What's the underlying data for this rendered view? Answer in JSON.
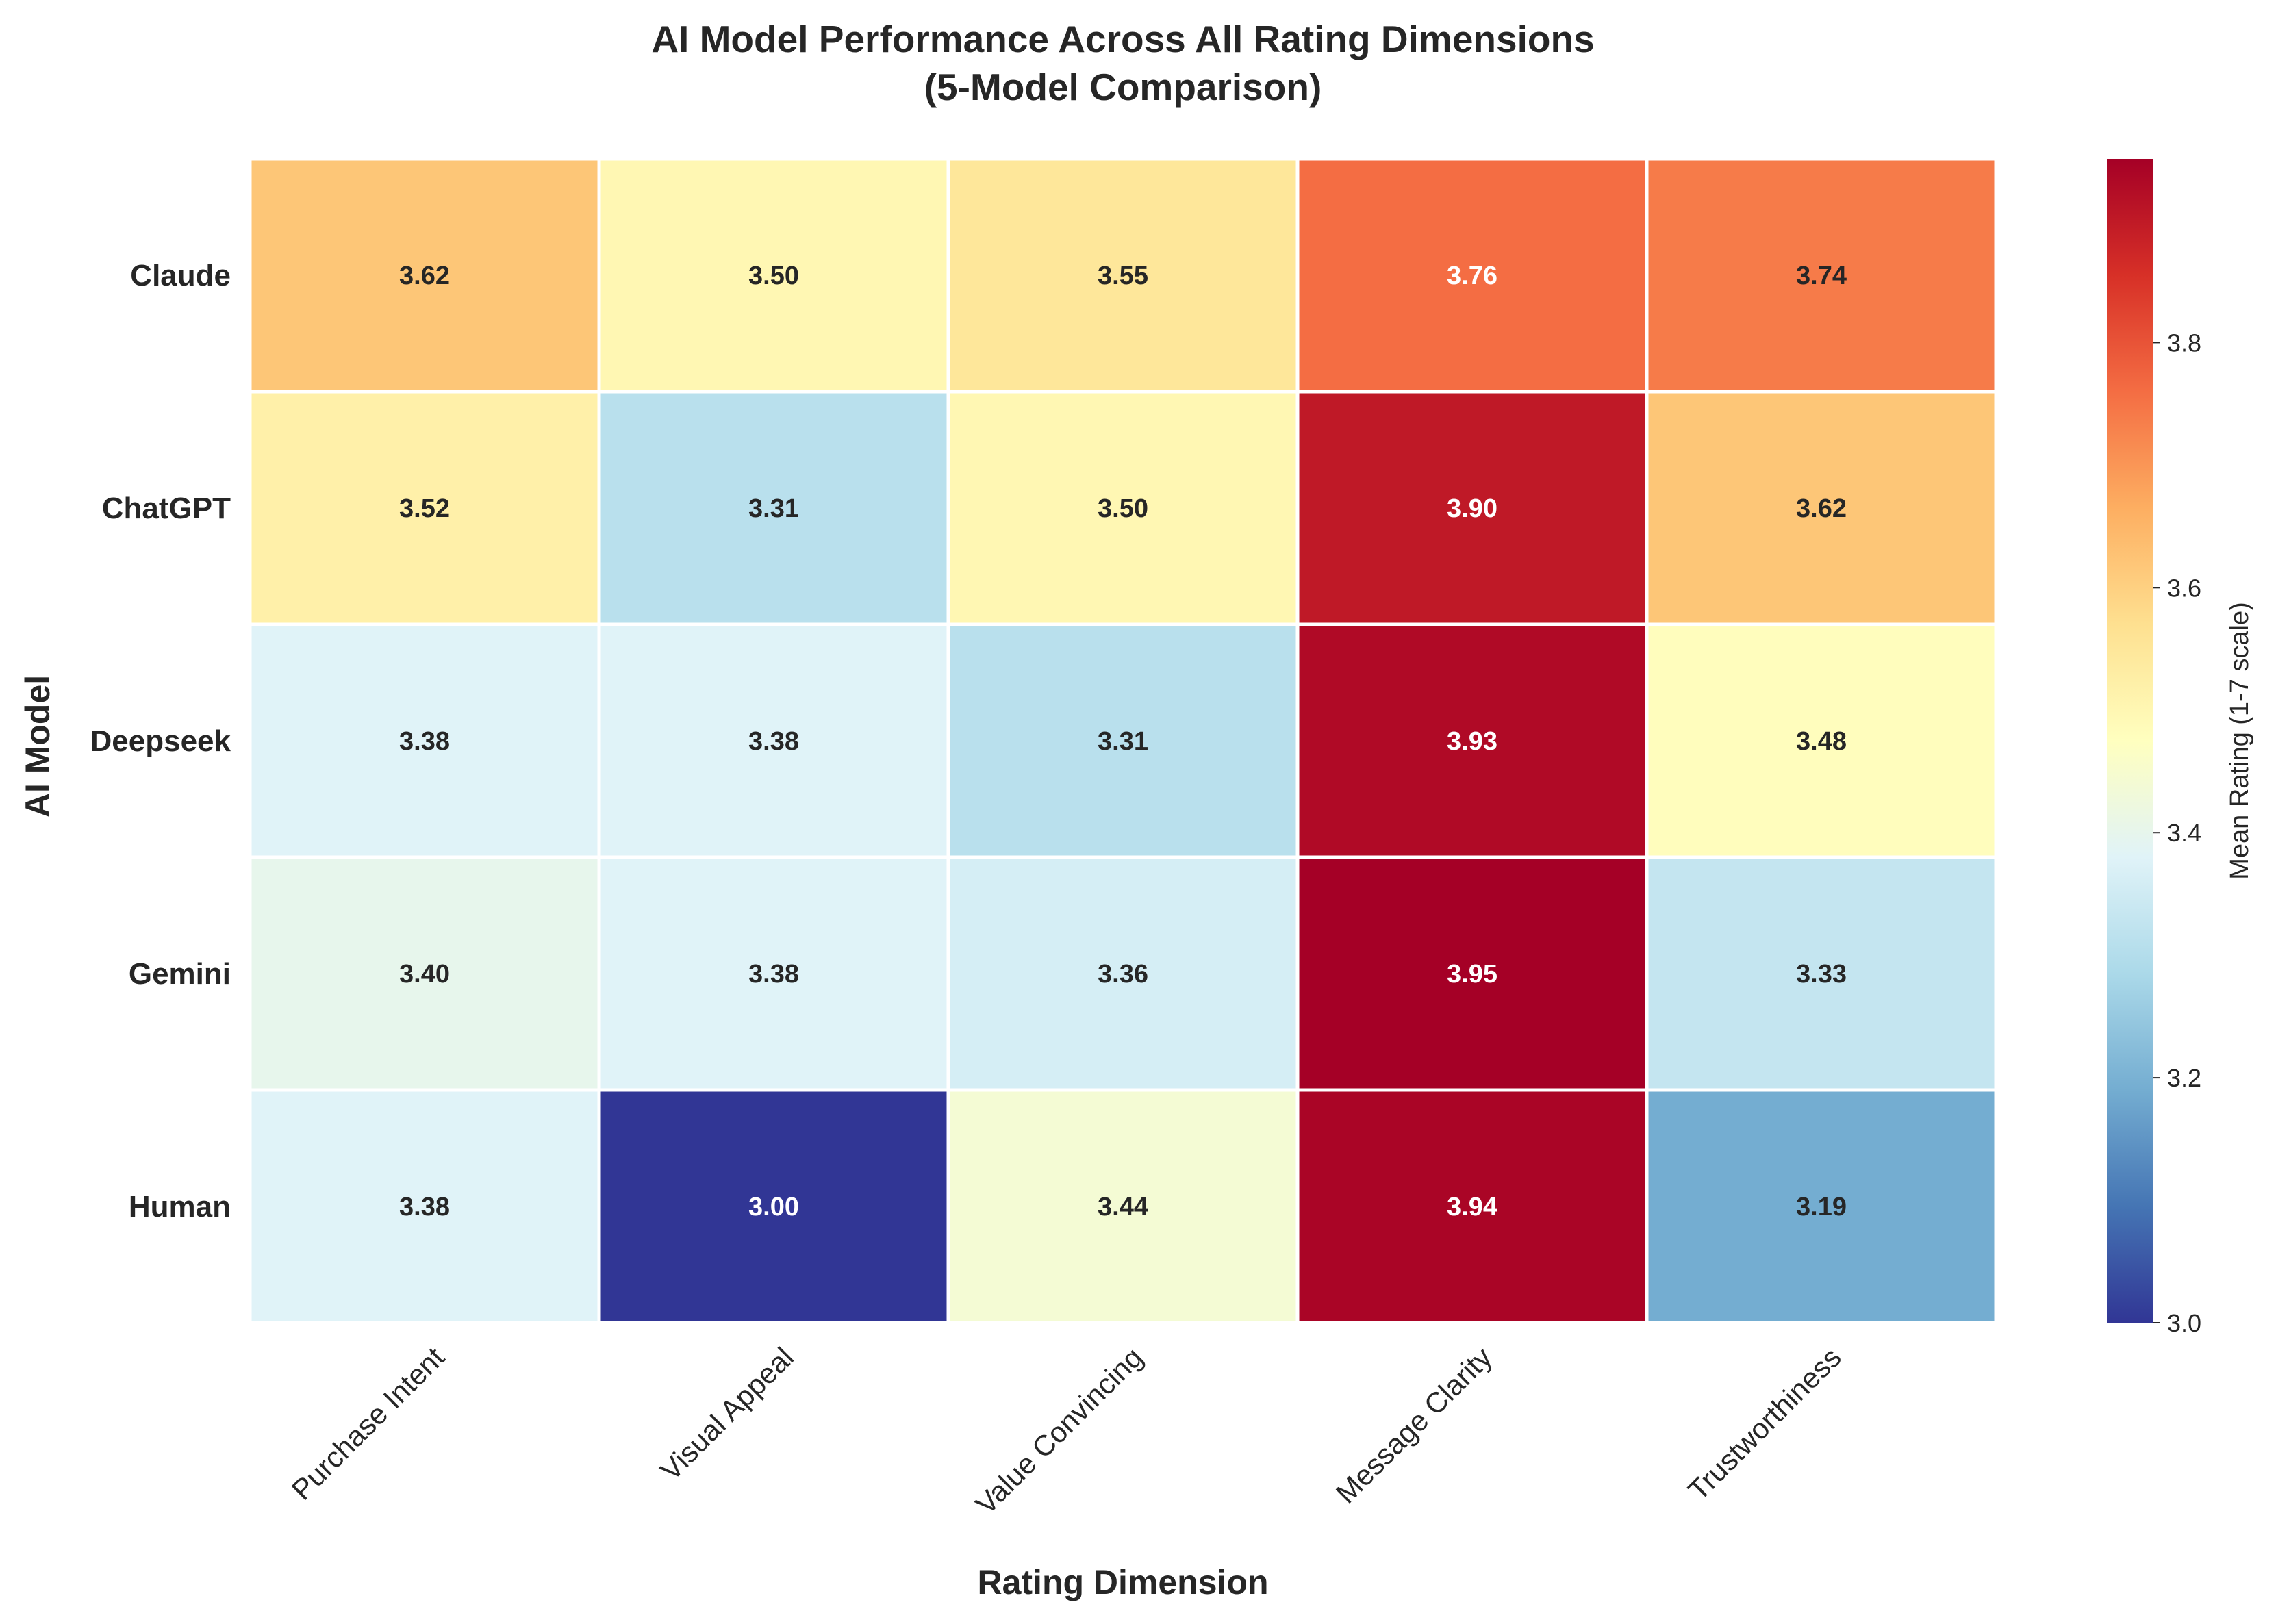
{
  "chart_data": {
    "type": "heatmap",
    "title_line1": "AI Model Performance Across All Rating Dimensions",
    "title_line2": "(5-Model Comparison)",
    "xlabel": "Rating Dimension",
    "ylabel": "AI Model",
    "x_categories": [
      "Purchase Intent",
      "Visual Appeal",
      "Value Convincing",
      "Message Clarity",
      "Trustworthiness"
    ],
    "y_categories": [
      "Claude",
      "ChatGPT",
      "Deepseek",
      "Gemini",
      "Human"
    ],
    "values": [
      [
        3.62,
        3.5,
        3.55,
        3.76,
        3.74
      ],
      [
        3.52,
        3.31,
        3.5,
        3.9,
        3.62
      ],
      [
        3.38,
        3.38,
        3.31,
        3.93,
        3.48
      ],
      [
        3.4,
        3.38,
        3.36,
        3.95,
        3.33
      ],
      [
        3.38,
        3.0,
        3.44,
        3.94,
        3.19
      ]
    ],
    "value_labels": [
      [
        "3.62",
        "3.50",
        "3.55",
        "3.76",
        "3.74"
      ],
      [
        "3.52",
        "3.31",
        "3.50",
        "3.90",
        "3.62"
      ],
      [
        "3.38",
        "3.38",
        "3.31",
        "3.93",
        "3.48"
      ],
      [
        "3.40",
        "3.38",
        "3.36",
        "3.95",
        "3.33"
      ],
      [
        "3.38",
        "3.00",
        "3.44",
        "3.94",
        "3.19"
      ]
    ],
    "colormap": "RdYlBu_r",
    "colorbar": {
      "label": "Mean Rating (1-7 scale)",
      "range": [
        3.0,
        3.95
      ],
      "ticks": [
        3.0,
        3.2,
        3.4,
        3.6,
        3.8
      ],
      "tick_labels": [
        "3.0",
        "3.2",
        "3.4",
        "3.6",
        "3.8"
      ]
    },
    "grid": false,
    "legend": "none"
  }
}
